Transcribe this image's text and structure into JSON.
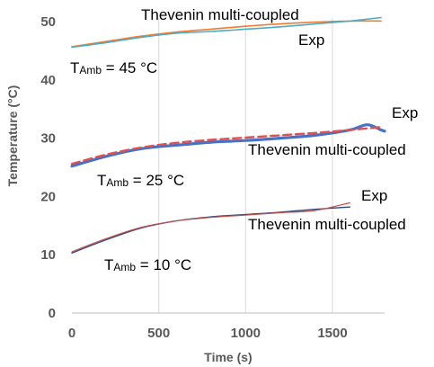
{
  "chart_data": {
    "type": "line",
    "xlabel": "Time (s)",
    "ylabel": "Temperature (°C)",
    "xlim": [
      0,
      1800
    ],
    "ylim": [
      0,
      50
    ],
    "x_ticks": [
      "0",
      "500",
      "1000",
      "1500"
    ],
    "y_ticks": [
      "0",
      "10",
      "20",
      "30",
      "40",
      "50"
    ],
    "grid": "vertical",
    "annotations": [
      {
        "text": "Thevenin multi-coupled"
      },
      {
        "text": "Exp"
      },
      {
        "main": "T",
        "sub": "Amb",
        "rest": " = 45 °C"
      },
      {
        "text": "Exp"
      },
      {
        "text": "Thevenin multi-coupled"
      },
      {
        "main": "T",
        "sub": "Amb",
        "rest": " = 25 °C"
      },
      {
        "text": "Exp"
      },
      {
        "text": "Thevenin multi-coupled"
      },
      {
        "main": "T",
        "sub": "Amb",
        "rest": " = 10 °C"
      }
    ],
    "series": [
      {
        "color": "#ED7D31",
        "style": "solid",
        "width": 1.6,
        "x": [
          0,
          200,
          400,
          600,
          800,
          1000,
          1200,
          1400,
          1600,
          1780
        ],
        "y": [
          45.7,
          46.6,
          47.5,
          48.2,
          48.7,
          49.2,
          49.6,
          49.9,
          50.1,
          50.1
        ]
      },
      {
        "color": "#4BACC6",
        "style": "solid",
        "width": 1.6,
        "x": [
          0,
          200,
          400,
          600,
          800,
          1000,
          1200,
          1400,
          1600,
          1780
        ],
        "y": [
          45.6,
          46.4,
          47.3,
          48.0,
          48.3,
          48.7,
          49.1,
          49.6,
          50.1,
          50.7
        ]
      },
      {
        "color": "#4472C4",
        "style": "solid",
        "width": 3.2,
        "x": [
          0,
          200,
          400,
          600,
          800,
          1000,
          1200,
          1400,
          1600,
          1700,
          1780,
          1800
        ],
        "y": [
          25.2,
          26.9,
          28.2,
          28.8,
          29.3,
          29.6,
          30.0,
          30.5,
          31.4,
          32.3,
          31.4,
          31.2
        ]
      },
      {
        "color": "#E05050",
        "style": "dashed",
        "width": 2.4,
        "x": [
          0,
          200,
          400,
          600,
          800,
          1000,
          1200,
          1400,
          1600,
          1780
        ],
        "y": [
          25.6,
          27.2,
          28.4,
          29.2,
          29.7,
          30.1,
          30.5,
          30.9,
          31.4,
          31.9
        ]
      },
      {
        "color": "#2F4A7A",
        "style": "solid",
        "width": 1.4,
        "x": [
          0,
          200,
          400,
          600,
          800,
          1000,
          1200,
          1400,
          1600
        ],
        "y": [
          10.3,
          12.6,
          14.6,
          15.8,
          16.5,
          16.9,
          17.3,
          17.8,
          18.2
        ]
      },
      {
        "color": "#C0504D",
        "style": "solid",
        "width": 1.2,
        "x": [
          0,
          200,
          400,
          600,
          800,
          1000,
          1200,
          1400,
          1600
        ],
        "y": [
          10.5,
          12.8,
          14.7,
          15.8,
          16.4,
          16.8,
          17.2,
          17.6,
          18.9
        ]
      }
    ]
  }
}
